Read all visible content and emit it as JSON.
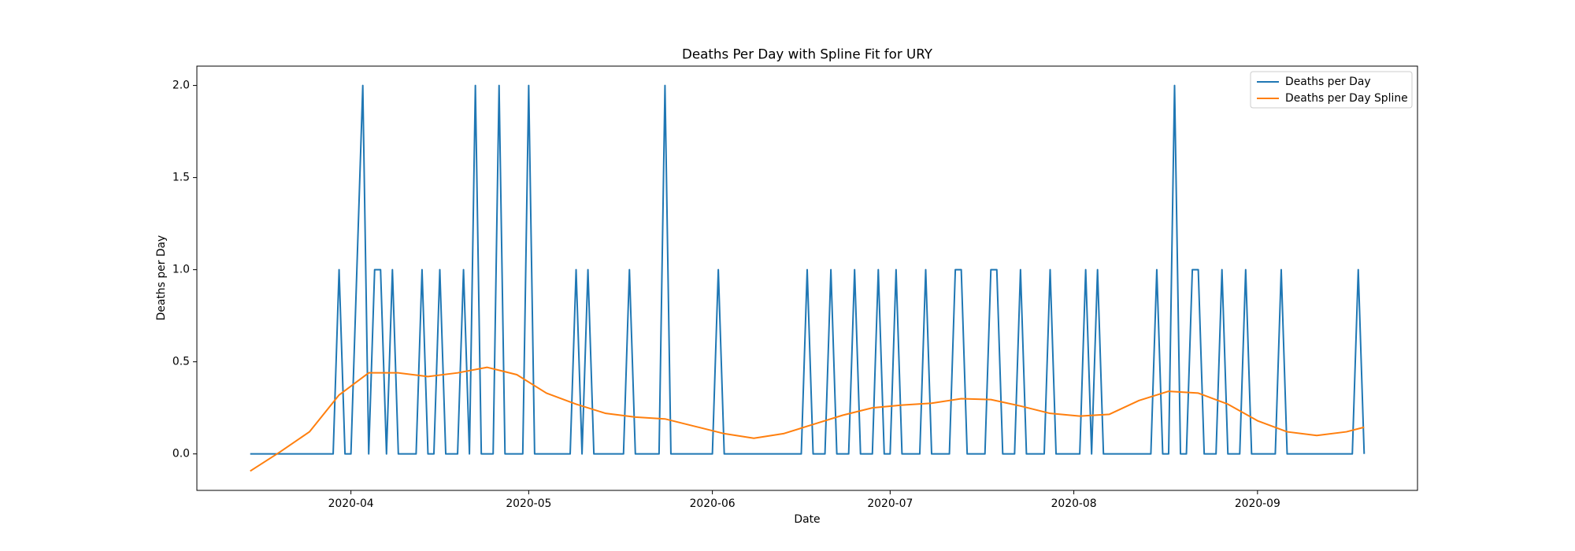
{
  "chart_data": {
    "type": "line",
    "title": "Deaths Per Day with Spline Fit for URY",
    "x_label": "Date",
    "y_label": "Deaths per Day",
    "legend": "upper right",
    "grid": false,
    "xlim": [
      "2020-03-06",
      "2020-09-28"
    ],
    "xticks": [
      {
        "value": "2020-04-01",
        "label": "2020-04"
      },
      {
        "value": "2020-05-01",
        "label": "2020-05"
      },
      {
        "value": "2020-06-01",
        "label": "2020-06"
      },
      {
        "value": "2020-07-01",
        "label": "2020-07"
      },
      {
        "value": "2020-08-01",
        "label": "2020-08"
      },
      {
        "value": "2020-09-01",
        "label": "2020-09"
      }
    ],
    "ylim": [
      -0.198,
      2.105
    ],
    "yticks": [
      {
        "value": 0,
        "label": "0.0"
      },
      {
        "value": 0.5,
        "label": "0.5"
      },
      {
        "value": 1,
        "label": "1.0"
      },
      {
        "value": 1.5,
        "label": "1.5"
      },
      {
        "value": 2,
        "label": "2.0"
      }
    ],
    "x": [
      "2020-03-15",
      "2020-03-16",
      "2020-03-17",
      "2020-03-18",
      "2020-03-19",
      "2020-03-20",
      "2020-03-21",
      "2020-03-22",
      "2020-03-23",
      "2020-03-24",
      "2020-03-25",
      "2020-03-26",
      "2020-03-27",
      "2020-03-28",
      "2020-03-29",
      "2020-03-30",
      "2020-03-31",
      "2020-04-01",
      "2020-04-02",
      "2020-04-03",
      "2020-04-04",
      "2020-04-05",
      "2020-04-06",
      "2020-04-07",
      "2020-04-08",
      "2020-04-09",
      "2020-04-10",
      "2020-04-11",
      "2020-04-12",
      "2020-04-13",
      "2020-04-14",
      "2020-04-15",
      "2020-04-16",
      "2020-04-17",
      "2020-04-18",
      "2020-04-19",
      "2020-04-20",
      "2020-04-21",
      "2020-04-22",
      "2020-04-23",
      "2020-04-24",
      "2020-04-25",
      "2020-04-26",
      "2020-04-27",
      "2020-04-28",
      "2020-04-29",
      "2020-04-30",
      "2020-05-01",
      "2020-05-02",
      "2020-05-03",
      "2020-05-04",
      "2020-05-05",
      "2020-05-06",
      "2020-05-07",
      "2020-05-08",
      "2020-05-09",
      "2020-05-10",
      "2020-05-11",
      "2020-05-12",
      "2020-05-13",
      "2020-05-14",
      "2020-05-15",
      "2020-05-16",
      "2020-05-17",
      "2020-05-18",
      "2020-05-19",
      "2020-05-20",
      "2020-05-21",
      "2020-05-22",
      "2020-05-23",
      "2020-05-24",
      "2020-05-25",
      "2020-05-26",
      "2020-05-27",
      "2020-05-28",
      "2020-05-29",
      "2020-05-30",
      "2020-05-31",
      "2020-06-01",
      "2020-06-02",
      "2020-06-03",
      "2020-06-04",
      "2020-06-05",
      "2020-06-06",
      "2020-06-07",
      "2020-06-08",
      "2020-06-09",
      "2020-06-10",
      "2020-06-11",
      "2020-06-12",
      "2020-06-13",
      "2020-06-14",
      "2020-06-15",
      "2020-06-16",
      "2020-06-17",
      "2020-06-18",
      "2020-06-19",
      "2020-06-20",
      "2020-06-21",
      "2020-06-22",
      "2020-06-23",
      "2020-06-24",
      "2020-06-25",
      "2020-06-26",
      "2020-06-27",
      "2020-06-28",
      "2020-06-29",
      "2020-06-30",
      "2020-07-01",
      "2020-07-02",
      "2020-07-03",
      "2020-07-04",
      "2020-07-05",
      "2020-07-06",
      "2020-07-07",
      "2020-07-08",
      "2020-07-09",
      "2020-07-10",
      "2020-07-11",
      "2020-07-12",
      "2020-07-13",
      "2020-07-14",
      "2020-07-15",
      "2020-07-16",
      "2020-07-17",
      "2020-07-18",
      "2020-07-19",
      "2020-07-20",
      "2020-07-21",
      "2020-07-22",
      "2020-07-23",
      "2020-07-24",
      "2020-07-25",
      "2020-07-26",
      "2020-07-27",
      "2020-07-28",
      "2020-07-29",
      "2020-07-30",
      "2020-07-31",
      "2020-08-01",
      "2020-08-02",
      "2020-08-03",
      "2020-08-04",
      "2020-08-05",
      "2020-08-06",
      "2020-08-07",
      "2020-08-08",
      "2020-08-09",
      "2020-08-10",
      "2020-08-11",
      "2020-08-12",
      "2020-08-13",
      "2020-08-14",
      "2020-08-15",
      "2020-08-16",
      "2020-08-17",
      "2020-08-18",
      "2020-08-19",
      "2020-08-20",
      "2020-08-21",
      "2020-08-22",
      "2020-08-23",
      "2020-08-24",
      "2020-08-25",
      "2020-08-26",
      "2020-08-27",
      "2020-08-28",
      "2020-08-29",
      "2020-08-30",
      "2020-08-31",
      "2020-09-01",
      "2020-09-02",
      "2020-09-03",
      "2020-09-04",
      "2020-09-05",
      "2020-09-06",
      "2020-09-07",
      "2020-09-08",
      "2020-09-09",
      "2020-09-10",
      "2020-09-11",
      "2020-09-12",
      "2020-09-13",
      "2020-09-14",
      "2020-09-15",
      "2020-09-16",
      "2020-09-17",
      "2020-09-18",
      "2020-09-19"
    ],
    "series": [
      {
        "name": "Deaths per Day",
        "color": "#1f77b4",
        "values": [
          0,
          0,
          0,
          0,
          0,
          0,
          0,
          0,
          0,
          0,
          0,
          0,
          0,
          0,
          0,
          1,
          0,
          0,
          1,
          2,
          0,
          1,
          1,
          0,
          1,
          0,
          0,
          0,
          0,
          1,
          0,
          0,
          1,
          0,
          0,
          0,
          1,
          0,
          2,
          0,
          0,
          0,
          2,
          0,
          0,
          0,
          0,
          2,
          0,
          0,
          0,
          0,
          0,
          0,
          0,
          1,
          0,
          1,
          0,
          0,
          0,
          0,
          0,
          0,
          1,
          0,
          0,
          0,
          0,
          0,
          2,
          0,
          0,
          0,
          0,
          0,
          0,
          0,
          0,
          1,
          0,
          0,
          0,
          0,
          0,
          0,
          0,
          0,
          0,
          0,
          0,
          0,
          0,
          0,
          1,
          0,
          0,
          0,
          1,
          0,
          0,
          0,
          1,
          0,
          0,
          0,
          1,
          0,
          0,
          1,
          0,
          0,
          0,
          0,
          1,
          0,
          0,
          0,
          0,
          1,
          1,
          0,
          0,
          0,
          0,
          1,
          1,
          0,
          0,
          0,
          1,
          0,
          0,
          0,
          0,
          1,
          0,
          0,
          0,
          0,
          0,
          1,
          0,
          1,
          0,
          0,
          0,
          0,
          0,
          0,
          0,
          0,
          0,
          1,
          0,
          0,
          2,
          0,
          0,
          1,
          1,
          0,
          0,
          0,
          1,
          0,
          0,
          0,
          1,
          0,
          0,
          0,
          0,
          0,
          1,
          0,
          0,
          0,
          0,
          0,
          0,
          0,
          0,
          0,
          0,
          0,
          0,
          1,
          0
        ]
      },
      {
        "name": "Deaths per Day Spline",
        "color": "#ff7f0e",
        "x": [
          "2020-03-15",
          "2020-03-20",
          "2020-03-25",
          "2020-03-30",
          "2020-04-04",
          "2020-04-09",
          "2020-04-14",
          "2020-04-19",
          "2020-04-24",
          "2020-04-29",
          "2020-05-04",
          "2020-05-09",
          "2020-05-14",
          "2020-05-19",
          "2020-05-24",
          "2020-05-29",
          "2020-06-03",
          "2020-06-08",
          "2020-06-13",
          "2020-06-18",
          "2020-06-23",
          "2020-06-28",
          "2020-07-03",
          "2020-07-08",
          "2020-07-13",
          "2020-07-18",
          "2020-07-23",
          "2020-07-28",
          "2020-08-02",
          "2020-08-07",
          "2020-08-12",
          "2020-08-17",
          "2020-08-22",
          "2020-08-27",
          "2020-09-01",
          "2020-09-06",
          "2020-09-11",
          "2020-09-16",
          "2020-09-19"
        ],
        "values": [
          -0.093,
          0.01,
          0.12,
          0.32,
          0.44,
          0.44,
          0.42,
          0.44,
          0.47,
          0.43,
          0.33,
          0.27,
          0.22,
          0.2,
          0.19,
          0.15,
          0.11,
          0.085,
          0.11,
          0.16,
          0.21,
          0.25,
          0.265,
          0.275,
          0.3,
          0.295,
          0.26,
          0.22,
          0.205,
          0.215,
          0.29,
          0.34,
          0.33,
          0.27,
          0.18,
          0.12,
          0.1,
          0.12,
          0.145
        ]
      }
    ]
  }
}
